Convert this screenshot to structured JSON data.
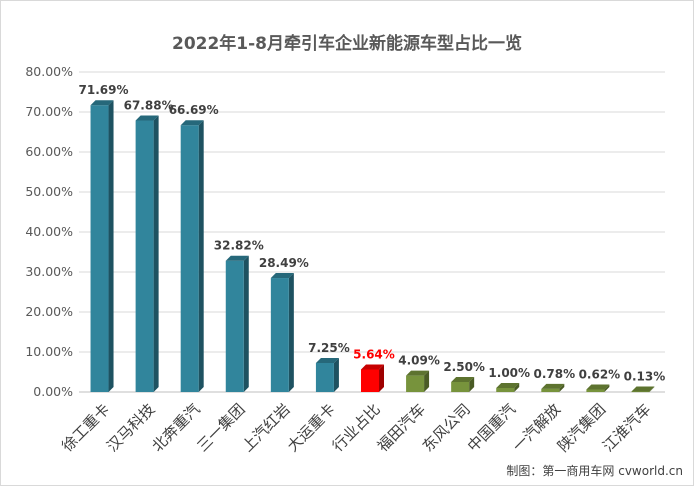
{
  "chart_data": {
    "type": "bar",
    "title": "2022年1-8月牵引车企业新能源车型占比一览",
    "categories": [
      "徐工重卡",
      "汉马科技",
      "北奔重汽",
      "三一集团",
      "上汽红岩",
      "大运重卡",
      "行业占比",
      "福田汽车",
      "东风公司",
      "中国重汽",
      "一汽解放",
      "陕汽集团",
      "江淮汽车"
    ],
    "values": [
      71.69,
      67.88,
      66.69,
      32.82,
      28.49,
      7.25,
      5.64,
      4.09,
      2.5,
      1.0,
      0.78,
      0.62,
      0.13
    ],
    "data_labels": [
      "71.69%",
      "67.88%",
      "66.69%",
      "32.82%",
      "28.49%",
      "7.25%",
      "5.64%",
      "4.09%",
      "2.50%",
      "1.00%",
      "0.78%",
      "0.62%",
      "0.13%"
    ],
    "bar_colors": [
      "#31859c",
      "#31859c",
      "#31859c",
      "#31859c",
      "#31859c",
      "#31859c",
      "#ff0000",
      "#77933c",
      "#77933c",
      "#77933c",
      "#77933c",
      "#77933c",
      "#77933c"
    ],
    "label_colors": [
      "#404040",
      "#404040",
      "#404040",
      "#404040",
      "#404040",
      "#404040",
      "#ff0000",
      "#404040",
      "#404040",
      "#404040",
      "#404040",
      "#404040",
      "#404040"
    ],
    "ylim": [
      0,
      80
    ],
    "yticks": [
      0,
      10,
      20,
      30,
      40,
      50,
      60,
      70,
      80
    ],
    "ytick_labels": [
      "0.00%",
      "10.00%",
      "20.00%",
      "30.00%",
      "40.00%",
      "50.00%",
      "60.00%",
      "70.00%",
      "80.00%"
    ],
    "grid": true,
    "xlabel": "",
    "ylabel": ""
  },
  "source": "制图：第一商用车网 cvworld.cn"
}
